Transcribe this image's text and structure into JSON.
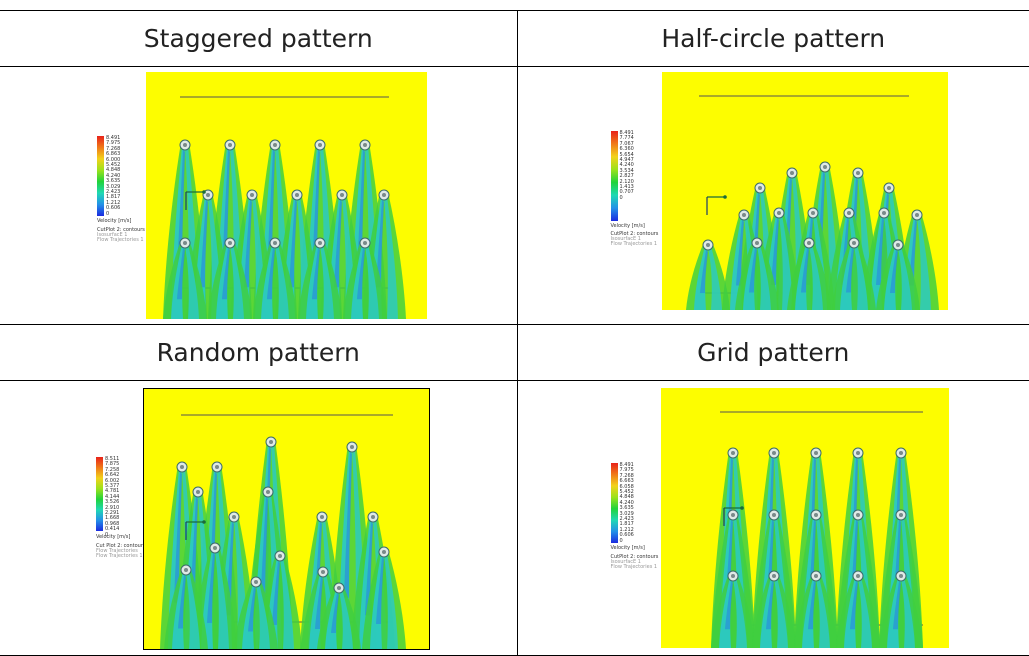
{
  "headers": {
    "staggered": "Staggered pattern",
    "half_circle": "Half-circle pattern",
    "random": "Random pattern",
    "grid": "Grid pattern"
  },
  "legend": {
    "staggered": {
      "values": [
        "8.491",
        "7.975",
        "7.268",
        "6.863",
        "6.000",
        "5.452",
        "4.848",
        "4.240",
        "3.635",
        "3.029",
        "2.423",
        "1.817",
        "1.212",
        "0.606",
        "0"
      ],
      "unit": "Velocity [m/s]",
      "captions": [
        "CutPlot 2: contours",
        "IsosurfacE 1",
        "Flow Trajectories 1"
      ]
    },
    "half_circle": {
      "values": [
        "8.491",
        "7.774",
        "7.067",
        "6.360",
        "5.654",
        "4.947",
        "4.240",
        "3.534",
        "2.827",
        "2.120",
        "1.413",
        "0.707",
        "0"
      ],
      "unit": "Velocity [m/s]",
      "captions": [
        "CutPlot 2: contours",
        "IsosurfacE 1",
        "Flow Trajectories 1"
      ]
    },
    "random": {
      "values": [
        "8.511",
        "7.875",
        "7.258",
        "6.642",
        "6.002",
        "5.377",
        "4.781",
        "4.144",
        "3.526",
        "2.910",
        "2.291",
        "1.668",
        "0.968",
        "0.414",
        "0"
      ],
      "unit": "Velocity [m/s]",
      "captions": [
        "Cut Plot 2: contours",
        "Flow Trajectories",
        "Flow Trajectories 1"
      ]
    },
    "grid": {
      "values": [
        "8.491",
        "7.975",
        "7.268",
        "6.663",
        "6.058",
        "5.452",
        "4.848",
        "4.240",
        "3.635",
        "3.029",
        "2.423",
        "1.817",
        "1.212",
        "0.606",
        "0"
      ],
      "unit": "Velocity [m/s]",
      "captions": [
        "CutPlot 2: contours",
        "IsosurfacE 1",
        "Flow Trajectories 1"
      ]
    }
  },
  "colors": {
    "background": "#fdfd00",
    "plume_outer": "#3fcf40",
    "plume_inner": "#2ac9c9",
    "plume_core": "#2a7fe0"
  }
}
